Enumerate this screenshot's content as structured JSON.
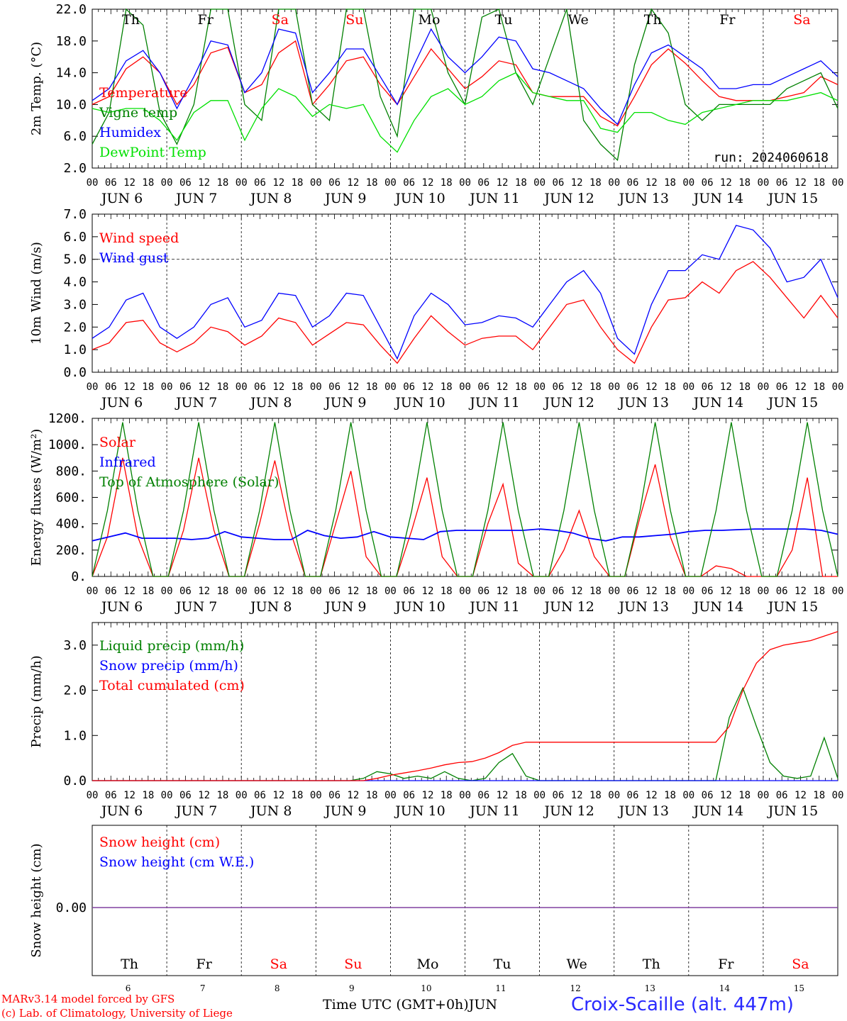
{
  "colors": {
    "temperature": "#ff0000",
    "vigne": "#008000",
    "humidex": "#0000ff",
    "dewpoint": "#00e000",
    "weekend_day": "#ff0000",
    "weekday": "#000000",
    "station": "#2a2aff"
  },
  "x_axis": {
    "hour_ticks": [
      "00",
      "06",
      "12",
      "18"
    ],
    "final_tick": "00",
    "dates": [
      "JUN  6",
      "JUN  7",
      "JUN  8",
      "JUN  9",
      "JUN 10",
      "JUN 11",
      "JUN 12",
      "JUN 13",
      "JUN 14",
      "JUN 15"
    ],
    "weekdays": [
      "Th",
      "Fr",
      "Sa",
      "Su",
      "Mo",
      "Tu",
      "We",
      "Th",
      "Fr",
      "Sa"
    ],
    "weekend": [
      false,
      false,
      true,
      true,
      false,
      false,
      false,
      false,
      false,
      true
    ],
    "day_numbers": [
      "6",
      "7",
      "8",
      "9",
      "10",
      "11",
      "12",
      "13",
      "14",
      "15"
    ],
    "title": "Time UTC (GMT+0h)",
    "month": "JUN"
  },
  "footer": {
    "model": "MARv3.14 model forced by GFS",
    "credit": "(c) Lab. of Climatology, University of Liege",
    "station": "Croix-Scaille (alt. 447m)"
  },
  "chart_data": [
    {
      "type": "line",
      "ylabel": "2m Temp. (°C)",
      "ylim": [
        2,
        22
      ],
      "yticks": [
        "2.0",
        "6.0",
        "10.0",
        "14.0",
        "18.0",
        "22.0"
      ],
      "annotation": "run: 2024060618",
      "x_hours_start": 0,
      "x_step_hours": 6,
      "series": [
        {
          "name": "Temperature",
          "color": "#ff0000",
          "values": [
            10,
            11,
            14.5,
            16,
            14,
            10,
            12.5,
            16.5,
            17.2,
            11.5,
            12.5,
            16.5,
            18,
            10,
            12.5,
            15.5,
            16,
            12.5,
            10,
            13.5,
            17,
            14.5,
            12,
            13.5,
            15.5,
            15,
            11.5,
            11,
            11,
            11,
            8.5,
            7.3,
            11,
            15,
            17,
            15.2,
            13,
            11,
            10.5,
            10.5,
            10.5,
            11,
            11.5,
            13.5,
            12.5
          ]
        },
        {
          "name": "Vigne temp",
          "color": "#008000",
          "values": [
            5,
            9,
            22,
            20,
            9,
            5,
            10,
            22,
            22,
            10,
            8,
            22,
            22,
            10,
            8,
            22,
            22,
            11,
            6,
            22,
            22,
            14,
            10,
            21,
            22,
            14,
            10,
            16,
            22,
            8,
            5,
            3,
            15,
            22,
            19,
            10,
            8,
            10,
            10,
            10,
            10,
            12,
            13,
            14,
            9.5
          ]
        },
        {
          "name": "Humidex",
          "color": "#0000ff",
          "values": [
            10.5,
            12,
            15.5,
            16.8,
            14,
            9.5,
            13.5,
            18,
            17.5,
            11.5,
            14,
            19.5,
            19,
            11.5,
            14,
            17,
            17,
            13.5,
            10,
            15,
            19.5,
            16,
            14,
            16,
            18.5,
            18,
            14.5,
            14,
            13,
            12,
            9.5,
            7.5,
            12.5,
            16.5,
            17.5,
            16,
            14.5,
            12,
            12,
            12.5,
            12.5,
            13.5,
            14.5,
            15.5,
            13.5
          ]
        },
        {
          "name": "DewPoint Temp",
          "color": "#00e000",
          "values": [
            9.5,
            9,
            9.5,
            9.5,
            8,
            5.5,
            9,
            10.5,
            10.5,
            5.5,
            9.5,
            12,
            11,
            8.5,
            10,
            9.5,
            10,
            6,
            4,
            8,
            11,
            12,
            10,
            11,
            13,
            14,
            11.5,
            11,
            10.5,
            10.5,
            7,
            6.5,
            9,
            9,
            8,
            7.5,
            9,
            9.5,
            10,
            10.5,
            10.5,
            10.5,
            11,
            11.5,
            10.5
          ]
        }
      ]
    },
    {
      "type": "line",
      "ylabel": "10m Wind (m/s)",
      "ylim": [
        0,
        7
      ],
      "yticks": [
        "0.0",
        "1.0",
        "2.0",
        "3.0",
        "4.0",
        "5.0",
        "6.0",
        "7.0"
      ],
      "reference_line": 5,
      "x_hours_start": 0,
      "x_step_hours": 6,
      "series": [
        {
          "name": "Wind speed",
          "color": "#ff0000",
          "values": [
            1,
            1.3,
            2.2,
            2.3,
            1.3,
            0.9,
            1.3,
            2,
            1.8,
            1.2,
            1.6,
            2.4,
            2.2,
            1.2,
            1.7,
            2.2,
            2.1,
            1.2,
            0.4,
            1.5,
            2.5,
            1.8,
            1.2,
            1.5,
            1.6,
            1.6,
            1,
            2,
            3,
            3.2,
            2,
            1,
            0.4,
            2,
            3.2,
            3.3,
            4,
            3.5,
            4.5,
            4.9,
            4.2,
            3.3,
            2.4,
            3.4,
            2.4
          ]
        },
        {
          "name": "Wind gust",
          "color": "#0000ff",
          "values": [
            1.5,
            2,
            3.2,
            3.5,
            2,
            1.5,
            2,
            3,
            3.3,
            2,
            2.3,
            3.5,
            3.4,
            2,
            2.5,
            3.5,
            3.4,
            2,
            0.6,
            2.5,
            3.5,
            3,
            2.1,
            2.2,
            2.5,
            2.4,
            2,
            3,
            4,
            4.5,
            3.5,
            1.5,
            0.8,
            3,
            4.5,
            4.5,
            5.2,
            5,
            6.5,
            6.3,
            5.5,
            4,
            4.2,
            5,
            3.3
          ]
        }
      ]
    },
    {
      "type": "line",
      "ylabel": "Energy fluxes (W/m²)",
      "ylim": [
        0,
        1200
      ],
      "yticks": [
        "0.",
        "200.",
        "400.",
        "600.",
        "800.",
        "1000.",
        "1200."
      ],
      "x_hours_start": 0,
      "x_step_hours": 6,
      "series": [
        {
          "name": "Solar",
          "color": "#ff0000",
          "values": [
            0,
            300,
            900,
            300,
            0,
            0,
            350,
            900,
            350,
            0,
            0,
            400,
            880,
            350,
            0,
            0,
            400,
            800,
            150,
            0,
            0,
            350,
            750,
            150,
            0,
            0,
            400,
            700,
            100,
            0,
            0,
            200,
            500,
            150,
            0,
            0,
            450,
            850,
            300,
            0,
            0,
            80,
            60,
            0,
            0,
            0,
            200,
            750,
            0,
            0
          ]
        },
        {
          "name": "Infrared",
          "color": "#0000ff",
          "values": [
            270,
            300,
            330,
            290,
            290,
            290,
            280,
            290,
            340,
            300,
            290,
            280,
            280,
            350,
            310,
            290,
            300,
            340,
            300,
            290,
            280,
            340,
            350,
            350,
            350,
            350,
            350,
            360,
            350,
            330,
            290,
            270,
            300,
            300,
            310,
            320,
            340,
            350,
            350,
            355,
            360,
            360,
            360,
            360,
            350,
            320
          ]
        },
        {
          "name": "Top of Atmosphere (Solar)",
          "color": "#008000",
          "values": [
            0,
            500,
            1170,
            500,
            0,
            0,
            500,
            1170,
            500,
            0,
            0,
            500,
            1170,
            500,
            0,
            0,
            500,
            1170,
            500,
            0,
            0,
            500,
            1170,
            500,
            0,
            0,
            500,
            1170,
            500,
            0,
            0,
            500,
            1170,
            500,
            0,
            0,
            500,
            1170,
            500,
            0,
            0,
            500,
            1170,
            500,
            0,
            0,
            500,
            1170,
            500,
            0
          ]
        }
      ]
    },
    {
      "type": "line",
      "ylabel": "Precip (mm/h)",
      "ylim": [
        0,
        3.5
      ],
      "yticks": [
        "0.0",
        "1.0",
        "2.0",
        "3.0"
      ],
      "x_hours_start": 0,
      "x_step_hours": 6,
      "series": [
        {
          "name": "Liquid precip (mm/h)",
          "color": "#008000",
          "values": [
            0,
            0,
            0,
            0,
            0,
            0,
            0,
            0,
            0,
            0,
            0,
            0,
            0,
            0,
            0,
            0,
            0,
            0,
            0,
            0,
            0.05,
            0.2,
            0.15,
            0.05,
            0.1,
            0.05,
            0.2,
            0.05,
            0,
            0.05,
            0.4,
            0.6,
            0.1,
            0,
            0,
            0,
            0,
            0,
            0,
            0,
            0,
            0,
            0,
            0,
            0,
            0,
            0,
            1.4,
            2.05,
            1.2,
            0.4,
            0.1,
            0.05,
            0.1,
            0.95,
            0.05
          ]
        },
        {
          "name": "Snow precip (mm/h)",
          "color": "#0000ff",
          "values": [
            0,
            0
          ]
        },
        {
          "name": "Total cumulated (cm)",
          "color": "#ff0000",
          "values": [
            0,
            0,
            0,
            0,
            0,
            0,
            0,
            0,
            0,
            0,
            0,
            0,
            0,
            0,
            0,
            0,
            0,
            0,
            0,
            0,
            0,
            0.05,
            0.12,
            0.17,
            0.22,
            0.28,
            0.35,
            0.4,
            0.42,
            0.5,
            0.62,
            0.78,
            0.85,
            0.85,
            0.85,
            0.85,
            0.85,
            0.85,
            0.85,
            0.85,
            0.85,
            0.85,
            0.85,
            0.85,
            0.85,
            0.85,
            0.85,
            1.2,
            2.0,
            2.6,
            2.9,
            3.0,
            3.05,
            3.1,
            3.2,
            3.3
          ]
        }
      ]
    },
    {
      "type": "line",
      "ylabel": "Snow height (cm)",
      "yticks": [
        "0.00"
      ],
      "series": [
        {
          "name": "Snow height (cm)",
          "color": "#ff0000",
          "values": [
            0,
            0
          ]
        },
        {
          "name": "Snow height (cm W.E.)",
          "color": "#0000ff",
          "values": [
            0,
            0
          ]
        }
      ]
    }
  ]
}
